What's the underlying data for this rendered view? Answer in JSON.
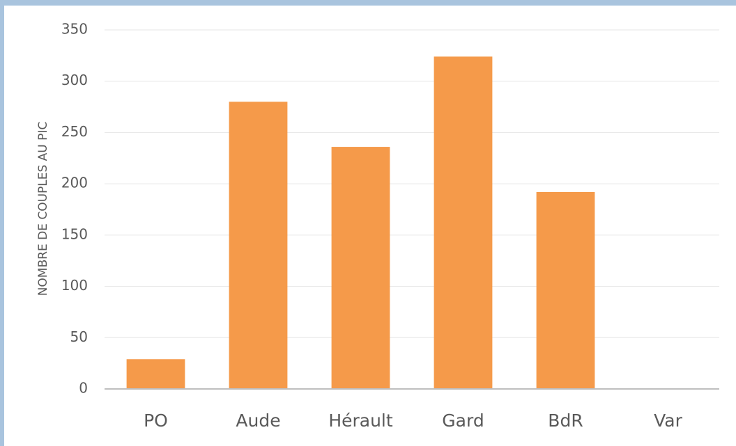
{
  "chart_data": {
    "type": "bar",
    "y_label": "NOMBRE DE COUPLES AU PIC",
    "categories": [
      "PO",
      "Aude",
      "Hérault",
      "Gard",
      "BdR",
      "Var"
    ],
    "values": [
      29,
      280,
      236,
      324,
      192,
      0
    ],
    "color": "#f59a4a",
    "ylim": [
      0,
      350
    ],
    "yticks": [
      0,
      50,
      100,
      150,
      200,
      250,
      300,
      350
    ],
    "grid": true
  }
}
